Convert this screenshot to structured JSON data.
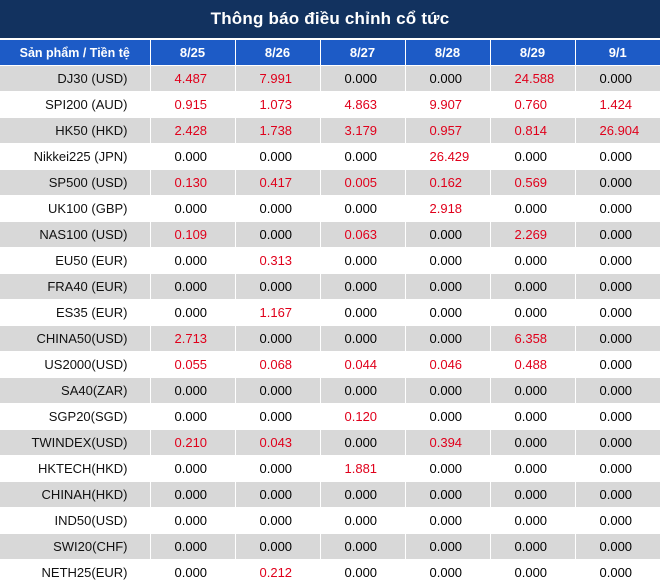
{
  "title": "Thông báo điều chỉnh cổ tức",
  "header": {
    "product_label": "Sản phẩm / Tiền tệ",
    "dates": [
      "8/25",
      "8/26",
      "8/27",
      "8/28",
      "8/29",
      "9/1"
    ]
  },
  "rows": [
    {
      "product": "DJ30 (USD)",
      "values": [
        "4.487",
        "7.991",
        "0.000",
        "0.000",
        "24.588",
        "0.000"
      ]
    },
    {
      "product": "SPI200 (AUD)",
      "values": [
        "0.915",
        "1.073",
        "4.863",
        "9.907",
        "0.760",
        "1.424"
      ]
    },
    {
      "product": "HK50 (HKD)",
      "values": [
        "2.428",
        "1.738",
        "3.179",
        "0.957",
        "0.814",
        "26.904"
      ]
    },
    {
      "product": "Nikkei225 (JPN)",
      "values": [
        "0.000",
        "0.000",
        "0.000",
        "26.429",
        "0.000",
        "0.000"
      ]
    },
    {
      "product": "SP500 (USD)",
      "values": [
        "0.130",
        "0.417",
        "0.005",
        "0.162",
        "0.569",
        "0.000"
      ]
    },
    {
      "product": "UK100 (GBP)",
      "values": [
        "0.000",
        "0.000",
        "0.000",
        "2.918",
        "0.000",
        "0.000"
      ]
    },
    {
      "product": "NAS100 (USD)",
      "values": [
        "0.109",
        "0.000",
        "0.063",
        "0.000",
        "2.269",
        "0.000"
      ]
    },
    {
      "product": "EU50 (EUR)",
      "values": [
        "0.000",
        "0.313",
        "0.000",
        "0.000",
        "0.000",
        "0.000"
      ]
    },
    {
      "product": "FRA40 (EUR)",
      "values": [
        "0.000",
        "0.000",
        "0.000",
        "0.000",
        "0.000",
        "0.000"
      ]
    },
    {
      "product": "ES35 (EUR)",
      "values": [
        "0.000",
        "1.167",
        "0.000",
        "0.000",
        "0.000",
        "0.000"
      ]
    },
    {
      "product": "CHINA50(USD)",
      "values": [
        "2.713",
        "0.000",
        "0.000",
        "0.000",
        "6.358",
        "0.000"
      ]
    },
    {
      "product": "US2000(USD)",
      "values": [
        "0.055",
        "0.068",
        "0.044",
        "0.046",
        "0.488",
        "0.000"
      ]
    },
    {
      "product": "SA40(ZAR)",
      "values": [
        "0.000",
        "0.000",
        "0.000",
        "0.000",
        "0.000",
        "0.000"
      ]
    },
    {
      "product": "SGP20(SGD)",
      "values": [
        "0.000",
        "0.000",
        "0.120",
        "0.000",
        "0.000",
        "0.000"
      ]
    },
    {
      "product": "TWINDEX(USD)",
      "values": [
        "0.210",
        "0.043",
        "0.000",
        "0.394",
        "0.000",
        "0.000"
      ]
    },
    {
      "product": "HKTECH(HKD)",
      "values": [
        "0.000",
        "0.000",
        "1.881",
        "0.000",
        "0.000",
        "0.000"
      ]
    },
    {
      "product": "CHINAH(HKD)",
      "values": [
        "0.000",
        "0.000",
        "0.000",
        "0.000",
        "0.000",
        "0.000"
      ]
    },
    {
      "product": "IND50(USD)",
      "values": [
        "0.000",
        "0.000",
        "0.000",
        "0.000",
        "0.000",
        "0.000"
      ]
    },
    {
      "product": "SWI20(CHF)",
      "values": [
        "0.000",
        "0.000",
        "0.000",
        "0.000",
        "0.000",
        "0.000"
      ]
    },
    {
      "product": "NETH25(EUR)",
      "values": [
        "0.000",
        "0.212",
        "0.000",
        "0.000",
        "0.000",
        "0.000"
      ]
    }
  ],
  "colors": {
    "title_bg": "#12325f",
    "header_bg": "#1d5bc6",
    "stripe_bg": "#d8d8d8",
    "positive_value": "#e0001b",
    "zero_value": "#000000"
  }
}
